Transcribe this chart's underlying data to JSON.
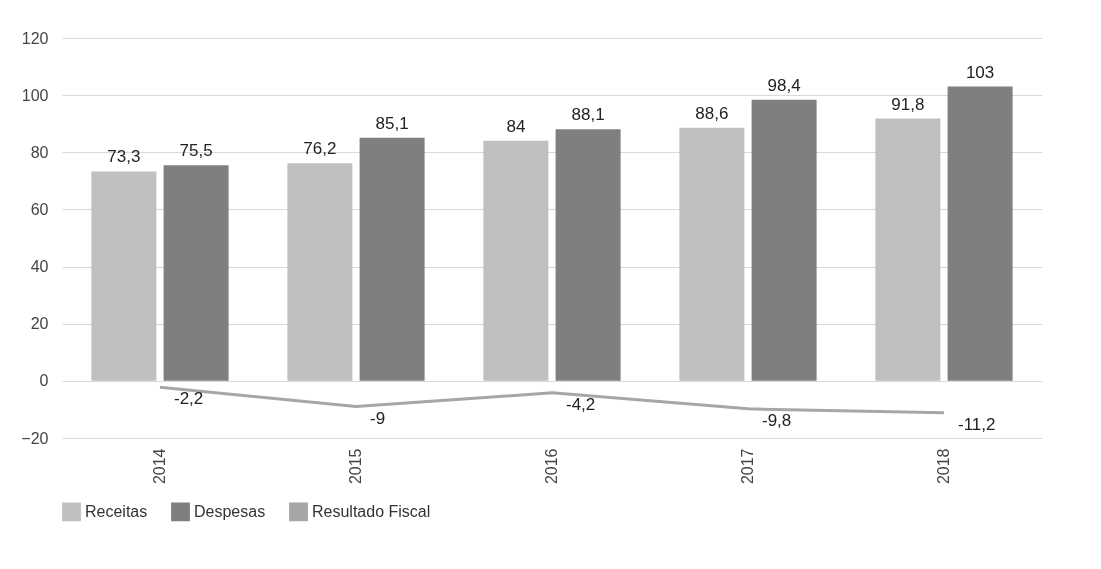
{
  "chart_data": {
    "type": "bar",
    "categories": [
      "2014",
      "2015",
      "2016",
      "2017",
      "2018"
    ],
    "series": [
      {
        "name": "Receitas",
        "color": "#c0c0c0",
        "values": [
          73.3,
          76.2,
          84,
          88.6,
          91.8
        ],
        "value_labels": [
          "73,3",
          "76,2",
          "84",
          "88,6",
          "91,8"
        ]
      },
      {
        "name": "Despesas",
        "color": "#7f7f7f",
        "values": [
          75.5,
          85.1,
          88.1,
          98.4,
          103
        ],
        "value_labels": [
          "75,5",
          "85,1",
          "88,1",
          "98,4",
          "103"
        ]
      },
      {
        "name": "Resultado Fiscal",
        "type": "line",
        "color": "#a6a6a6",
        "values": [
          -2.2,
          -9,
          -4.2,
          -9.8,
          -11.2
        ],
        "value_labels": [
          "-2,2",
          "-9",
          "-4,2",
          "-9,8",
          "-11,2"
        ]
      }
    ],
    "ylim": [
      -20,
      120
    ],
    "yticks": [
      -20,
      0,
      20,
      40,
      60,
      80,
      100,
      120
    ],
    "grid": true,
    "legend": "bottom",
    "marker": "none"
  }
}
